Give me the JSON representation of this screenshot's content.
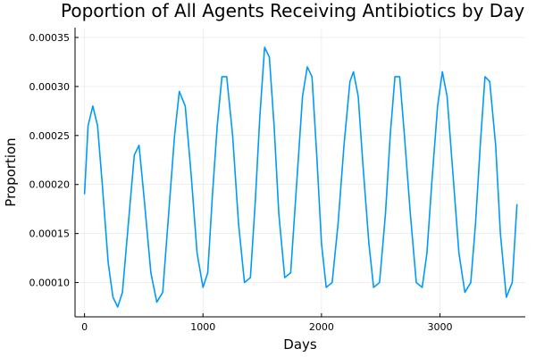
{
  "chart_data": {
    "type": "line",
    "title": "Poportion of All Agents Receiving Antibiotics by Day",
    "xlabel": "Days",
    "ylabel": "Proportion",
    "xlim": [
      -80,
      3720
    ],
    "ylim": [
      6.5e-05,
      0.00036
    ],
    "x_ticks": [
      {
        "value": 0,
        "label": "0"
      },
      {
        "value": 1000,
        "label": "1000"
      },
      {
        "value": 2000,
        "label": "2000"
      },
      {
        "value": 3000,
        "label": "3000"
      }
    ],
    "y_ticks": [
      {
        "value": 0.0001,
        "label": "0.00010"
      },
      {
        "value": 0.00015,
        "label": "0.00015"
      },
      {
        "value": 0.0002,
        "label": "0.00020"
      },
      {
        "value": 0.00025,
        "label": "0.00025"
      },
      {
        "value": 0.0003,
        "label": "0.00030"
      },
      {
        "value": 0.00035,
        "label": "0.00035"
      }
    ],
    "grid": true,
    "legend": "none",
    "series": [
      {
        "color": "#009af9",
        "x": [
          0,
          30,
          70,
          110,
          150,
          200,
          240,
          280,
          320,
          370,
          420,
          460,
          500,
          560,
          610,
          660,
          710,
          760,
          800,
          850,
          900,
          950,
          1000,
          1040,
          1080,
          1120,
          1160,
          1200,
          1250,
          1300,
          1350,
          1400,
          1440,
          1480,
          1520,
          1560,
          1600,
          1640,
          1690,
          1740,
          1790,
          1840,
          1880,
          1920,
          1960,
          2000,
          2040,
          2090,
          2140,
          2190,
          2240,
          2270,
          2310,
          2350,
          2400,
          2440,
          2490,
          2540,
          2580,
          2620,
          2660,
          2700,
          2750,
          2800,
          2850,
          2890,
          2930,
          2980,
          3020,
          3060,
          3110,
          3160,
          3210,
          3260,
          3300,
          3340,
          3380,
          3420,
          3470,
          3510,
          3560,
          3610,
          3650
        ],
        "y": [
          0.00019,
          0.00026,
          0.00028,
          0.00026,
          0.0002,
          0.00012,
          8.5e-05,
          7.5e-05,
          9e-05,
          0.00016,
          0.00023,
          0.00024,
          0.00019,
          0.00011,
          8e-05,
          9e-05,
          0.00017,
          0.00025,
          0.000295,
          0.00028,
          0.00021,
          0.00013,
          9.5e-05,
          0.00011,
          0.00019,
          0.00026,
          0.00031,
          0.00031,
          0.00025,
          0.00016,
          0.0001,
          0.000105,
          0.00018,
          0.00027,
          0.00034,
          0.00033,
          0.00026,
          0.00017,
          0.000105,
          0.00011,
          0.0002,
          0.00029,
          0.00032,
          0.00031,
          0.00023,
          0.00014,
          9.5e-05,
          0.0001,
          0.00016,
          0.00024,
          0.000305,
          0.000315,
          0.00029,
          0.00022,
          0.00014,
          9.5e-05,
          0.0001,
          0.00017,
          0.00025,
          0.00031,
          0.00031,
          0.00025,
          0.00017,
          0.0001,
          9.5e-05,
          0.00013,
          0.0002,
          0.00028,
          0.000315,
          0.00029,
          0.00021,
          0.00013,
          9e-05,
          0.0001,
          0.00016,
          0.00024,
          0.00031,
          0.000305,
          0.00024,
          0.00015,
          8.5e-05,
          0.0001,
          0.00018
        ]
      }
    ]
  }
}
